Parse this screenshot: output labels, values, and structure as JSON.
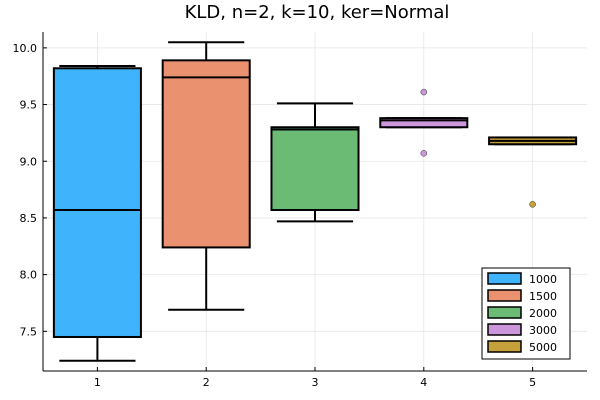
{
  "chart_data": {
    "type": "boxplot",
    "title": "KLD, n=2, k=10, ker=Normal",
    "xlabel": "",
    "ylabel": "",
    "categories": [
      "1",
      "2",
      "3",
      "4",
      "5"
    ],
    "xlim": [
      0.5,
      5.5
    ],
    "ylim": [
      7.15,
      10.14
    ],
    "yticks": [
      "7.5",
      "8.0",
      "8.5",
      "9.0",
      "9.5",
      "10.0"
    ],
    "grid": true,
    "legend_position": "bottom-right",
    "series": [
      {
        "name": "1000",
        "color": "#3fb3fb",
        "x": 1,
        "whisker_low": 7.24,
        "q1": 7.45,
        "median": 8.57,
        "q3": 9.82,
        "whisker_high": 9.84,
        "outliers": []
      },
      {
        "name": "1500",
        "color": "#ea9270",
        "x": 2,
        "whisker_low": 7.69,
        "q1": 8.24,
        "median": 9.74,
        "q3": 9.89,
        "whisker_high": 10.05,
        "outliers": []
      },
      {
        "name": "2000",
        "color": "#6bbb74",
        "x": 3,
        "whisker_low": 8.47,
        "q1": 8.57,
        "median": 9.28,
        "q3": 9.3,
        "whisker_high": 9.51,
        "outliers": []
      },
      {
        "name": "3000",
        "color": "#cc96dc",
        "x": 4,
        "whisker_low": 9.3,
        "q1": 9.3,
        "median": 9.36,
        "q3": 9.38,
        "whisker_high": 9.38,
        "outliers": [
          9.61,
          9.07
        ]
      },
      {
        "name": "5000",
        "color": "#c6a13b",
        "x": 5,
        "whisker_low": 9.15,
        "q1": 9.15,
        "median": 9.18,
        "q3": 9.21,
        "whisker_high": 9.21,
        "outliers": [
          8.62
        ]
      }
    ]
  }
}
